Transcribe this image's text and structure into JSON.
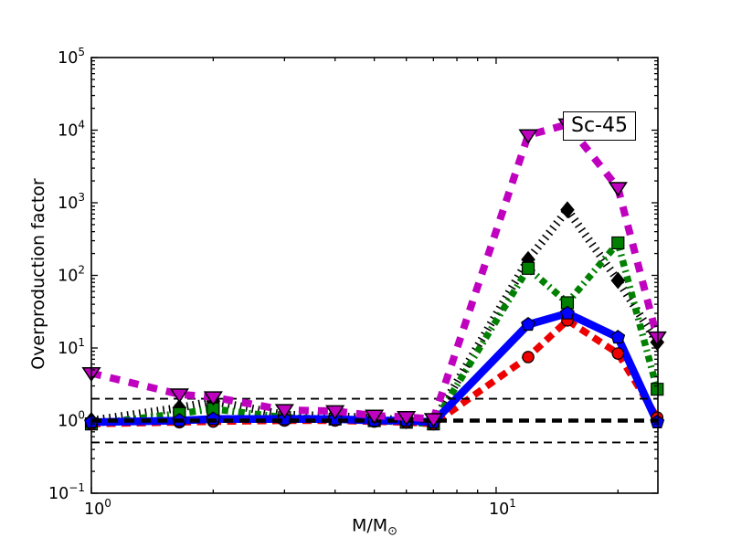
{
  "figure": {
    "background": "#ffffff"
  },
  "chart_data": {
    "type": "line",
    "title": "",
    "annotation": "Sc-45",
    "ylabel": "Overproduction factor",
    "xlabel": {
      "main": "M/M",
      "sub": "⊙"
    },
    "x_scale": "log",
    "y_scale": "log",
    "xlim": [
      1,
      25.1
    ],
    "ylim": [
      0.1,
      100000
    ],
    "grid": "off",
    "legend": "none",
    "x_ticks": [
      {
        "base": "10",
        "exp": "0",
        "value": 1
      },
      {
        "base": "10",
        "exp": "1",
        "value": 10
      }
    ],
    "x_minor_ticks": [
      2,
      3,
      4,
      5,
      6,
      7,
      8,
      9,
      20
    ],
    "y_ticks": [
      {
        "base": "10",
        "exp": "5",
        "value": 100000
      },
      {
        "base": "10",
        "exp": "4",
        "value": 10000
      },
      {
        "base": "10",
        "exp": "3",
        "value": 1000
      },
      {
        "base": "10",
        "exp": "2",
        "value": 100
      },
      {
        "base": "10",
        "exp": "1",
        "value": 10
      },
      {
        "base": "10",
        "exp": "0",
        "value": 1
      },
      {
        "base": "10",
        "exp": "−1",
        "value": 0.1
      }
    ],
    "reference_lines": [
      {
        "y": 2,
        "weight": "thin",
        "color": "#000000"
      },
      {
        "y": 1,
        "weight": "thick",
        "color": "#000000"
      },
      {
        "y": 0.5,
        "weight": "thin",
        "color": "#000000"
      }
    ],
    "x": [
      1,
      1.65,
      2,
      3,
      4,
      5,
      6,
      7,
      12,
      15,
      20,
      25
    ],
    "series": [
      {
        "name": "black-dotted-diamond",
        "color": "#000000",
        "line_style": "dotted",
        "marker": "diamond",
        "layer": 1,
        "values": [
          1.0,
          1.5,
          1.85,
          1.2,
          1.15,
          1.08,
          1.0,
          0.95,
          165,
          800,
          85,
          12
        ]
      },
      {
        "name": "green-dashdot-square",
        "color": "#008000",
        "line_style": "dashdot",
        "marker": "square",
        "layer": 1,
        "values": [
          0.9,
          1.25,
          1.45,
          1.1,
          1.05,
          1.0,
          0.95,
          0.9,
          125,
          42,
          280,
          2.7
        ]
      },
      {
        "name": "red-dashed-circle",
        "color": "#ee0000",
        "line_style": "dashed",
        "marker": "circle",
        "layer": 1,
        "values": [
          0.9,
          0.95,
          0.97,
          1.0,
          1.0,
          0.97,
          0.95,
          0.9,
          7.5,
          24,
          8.4,
          1.1
        ]
      },
      {
        "name": "blue-solid-pentagon",
        "color": "#0000ff",
        "line_style": "solid",
        "marker": "pentagon",
        "layer": 1,
        "values": [
          0.95,
          1.0,
          1.05,
          1.05,
          1.05,
          1.0,
          1.0,
          0.95,
          21,
          30,
          14,
          0.95
        ]
      },
      {
        "name": "magenta-dashed-triangle",
        "color": "#bf00bf",
        "line_style": "dashed-heavy",
        "marker": "triangle-down",
        "layer": 2,
        "values": [
          4.5,
          2.3,
          2.1,
          1.4,
          1.35,
          1.17,
          1.12,
          1.05,
          8500,
          12000,
          1600,
          14
        ]
      }
    ]
  }
}
